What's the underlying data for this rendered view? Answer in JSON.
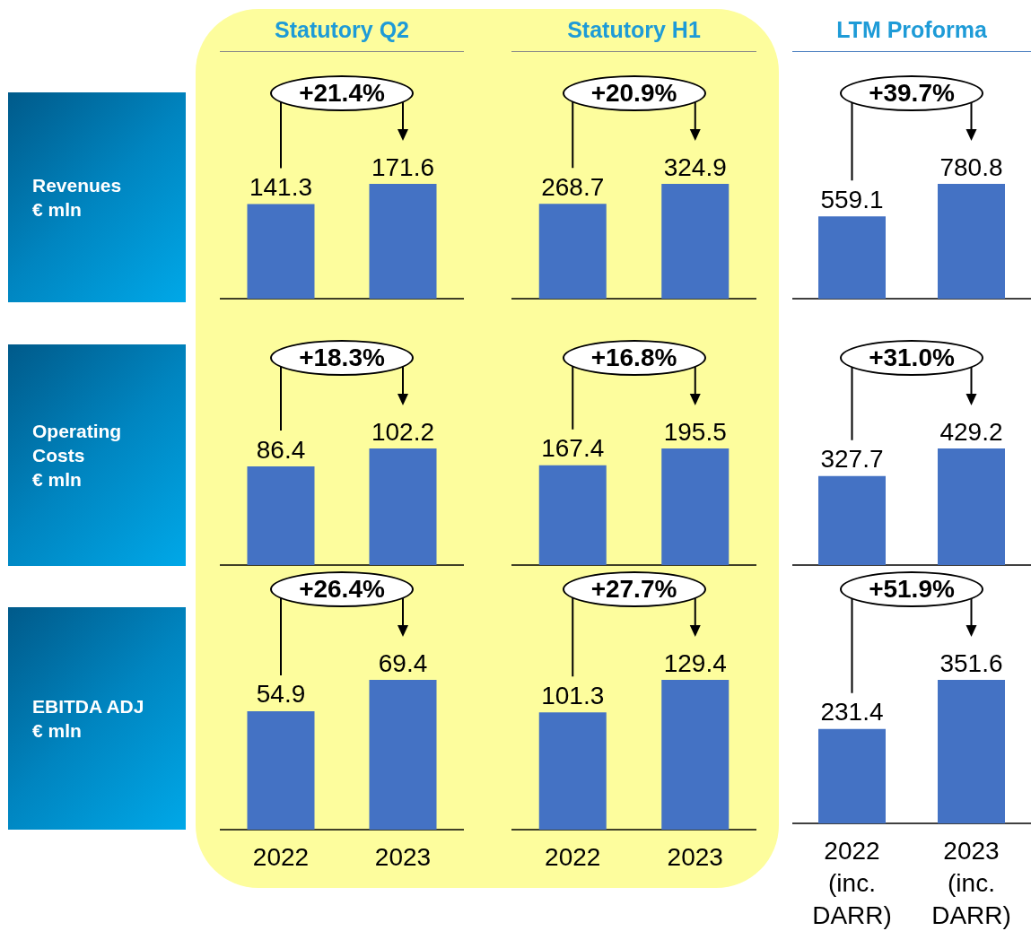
{
  "chart_data": [
    {
      "type": "bar",
      "title": "Statutory Q2",
      "ylabel": "Revenues\n€ mln",
      "categories": [
        null,
        null
      ],
      "values": [
        141.3,
        171.6
      ],
      "color": "#4472c4",
      "data_labels": true,
      "annotations": [
        "+21.4%"
      ],
      "tick_labels": false
    },
    {
      "type": "bar",
      "title": "Statutory H1",
      "categories": [
        null,
        null
      ],
      "values": [
        268.7,
        324.9
      ],
      "color": "#4472c4",
      "data_labels": true,
      "annotations": [
        "+20.9%"
      ],
      "tick_labels": false
    },
    {
      "type": "bar",
      "title": "LTM Proforma",
      "categories": [
        null,
        null
      ],
      "values": [
        559.1,
        780.8
      ],
      "color": "#4472c4",
      "data_labels": true,
      "annotations": [
        "+39.7%"
      ],
      "tick_labels": false
    },
    {
      "type": "bar",
      "ylabel": "Operating\nCosts\n€ mln",
      "categories": [
        null,
        null
      ],
      "values": [
        86.4,
        102.2
      ],
      "color": "#4472c4",
      "data_labels": true,
      "annotations": [
        "+18.3%"
      ],
      "tick_labels": false
    },
    {
      "type": "bar",
      "categories": [
        null,
        null
      ],
      "values": [
        167.4,
        195.5
      ],
      "color": "#4472c4",
      "data_labels": true,
      "annotations": [
        "+16.8%"
      ],
      "tick_labels": false
    },
    {
      "type": "bar",
      "categories": [
        null,
        null
      ],
      "values": [
        327.7,
        429.2
      ],
      "color": "#4472c4",
      "data_labels": true,
      "annotations": [
        "+31.0%"
      ],
      "tick_labels": false
    },
    {
      "type": "bar",
      "ylabel": "EBITDA ADJ\n€ mln",
      "categories": [
        "2022",
        "2023"
      ],
      "values": [
        54.9,
        69.4
      ],
      "color": "#4472c4",
      "data_labels": true,
      "annotations": [
        "+26.4%"
      ],
      "tick_labels": "x"
    },
    {
      "type": "bar",
      "categories": [
        "2022",
        "2023"
      ],
      "values": [
        101.3,
        129.4
      ],
      "color": "#4472c4",
      "data_labels": true,
      "annotations": [
        "+27.7%"
      ],
      "tick_labels": "x"
    },
    {
      "type": "bar",
      "categories": [
        "2022\n(inc.\nDARR)",
        "2023\n(inc.\nDARR)"
      ],
      "values": [
        231.4,
        351.6
      ],
      "color": "#4472c4",
      "data_labels": true,
      "annotations": [
        "+51.9%"
      ],
      "tick_labels": "x"
    }
  ]
}
